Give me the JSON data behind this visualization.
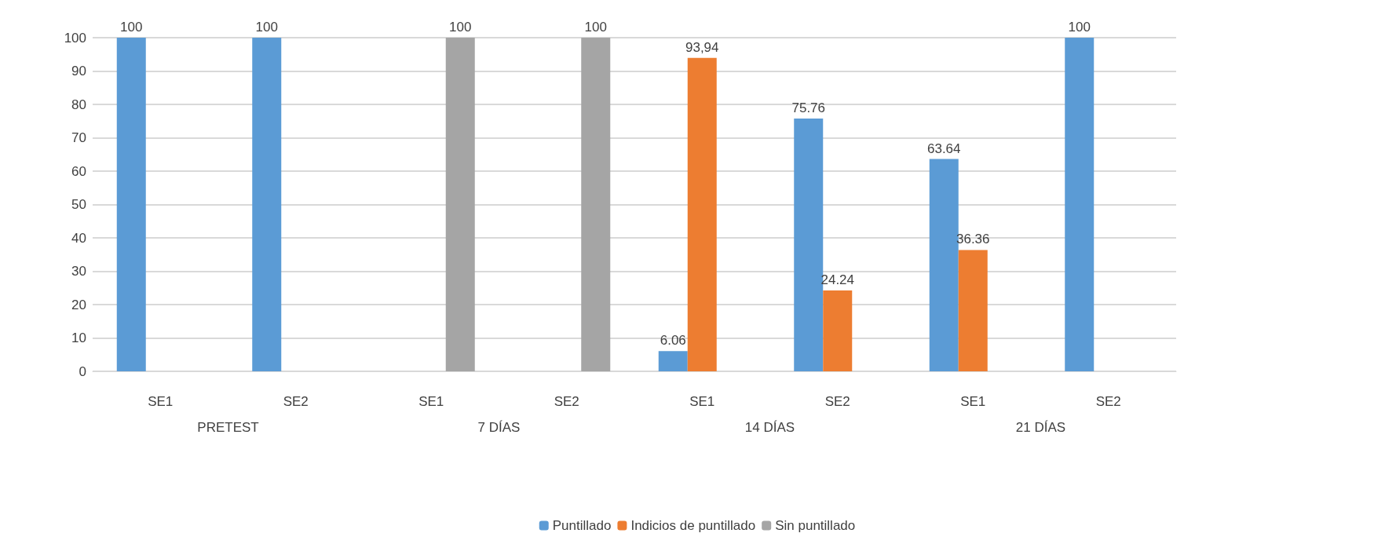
{
  "chart_data": {
    "type": "bar",
    "categories": [
      "SE1",
      "SE2",
      "SE1",
      "SE2",
      "SE1",
      "SE2",
      "SE1",
      "SE2"
    ],
    "annotations": [
      "PRETEST",
      "7 DÍAS",
      "14 DÍAS",
      "21 DÍAS"
    ],
    "series": [
      {
        "name": "Puntillado",
        "color": "#5b9bd5",
        "values": [
          100,
          100,
          null,
          null,
          6.06,
          75.76,
          63.64,
          100
        ],
        "value_labels": [
          "100",
          "100",
          null,
          null,
          "6.06",
          "75.76",
          "63.64",
          "100"
        ]
      },
      {
        "name": "Indicios de puntillado",
        "color": "#ed7d31",
        "values": [
          null,
          null,
          null,
          null,
          93.94,
          24.24,
          36.36,
          null
        ],
        "value_labels": [
          null,
          null,
          null,
          null,
          "93,94",
          "24.24",
          "36.36",
          null
        ]
      },
      {
        "name": "Sin puntillado",
        "color": "#a5a5a5",
        "values": [
          null,
          null,
          100,
          100,
          null,
          null,
          null,
          null
        ],
        "value_labels": [
          null,
          null,
          "100",
          "100",
          null,
          null,
          null,
          null
        ]
      }
    ],
    "ylim": [
      0,
      100
    ],
    "yticks": [
      0,
      10,
      20,
      30,
      40,
      50,
      60,
      70,
      80,
      90,
      100
    ],
    "grid": "y",
    "legend": "bottom"
  }
}
